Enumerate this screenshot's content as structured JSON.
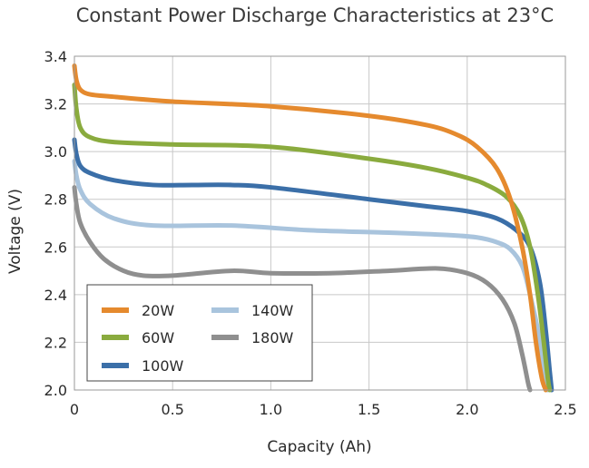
{
  "chart_data": {
    "type": "line",
    "title": "Constant Power Discharge Characteristics at 23°C",
    "xlabel": "Capacity (Ah)",
    "ylabel": "Voltage (V)",
    "xlim": [
      0,
      2.5
    ],
    "ylim": [
      2.0,
      3.4
    ],
    "xticks": [
      "0",
      "0.5",
      "1.0",
      "1.5",
      "2.0",
      "2.5"
    ],
    "yticks": [
      "2.0",
      "2.2",
      "2.4",
      "2.6",
      "2.8",
      "3.0",
      "3.2",
      "3.4"
    ],
    "grid": true,
    "legend_position": "bottom-left",
    "series": [
      {
        "name": "20W",
        "color": "#e58a2e",
        "x": [
          0.0,
          0.01,
          0.03,
          0.08,
          0.2,
          0.5,
          1.0,
          1.5,
          1.8,
          1.95,
          2.05,
          2.15,
          2.22,
          2.28,
          2.32,
          2.35,
          2.38,
          2.4
        ],
        "y": [
          3.36,
          3.3,
          3.26,
          3.24,
          3.23,
          3.21,
          3.19,
          3.15,
          3.11,
          3.07,
          3.02,
          2.93,
          2.8,
          2.6,
          2.4,
          2.2,
          2.05,
          2.0
        ]
      },
      {
        "name": "60W",
        "color": "#8aab3e",
        "x": [
          0.0,
          0.01,
          0.03,
          0.08,
          0.2,
          0.5,
          1.0,
          1.5,
          1.8,
          2.0,
          2.1,
          2.2,
          2.27,
          2.32,
          2.36,
          2.39,
          2.41,
          2.42
        ],
        "y": [
          3.28,
          3.18,
          3.1,
          3.06,
          3.04,
          3.03,
          3.02,
          2.97,
          2.93,
          2.89,
          2.86,
          2.81,
          2.73,
          2.6,
          2.4,
          2.2,
          2.05,
          2.0
        ]
      },
      {
        "name": "100W",
        "color": "#3b6fa8",
        "x": [
          0.0,
          0.01,
          0.03,
          0.08,
          0.2,
          0.4,
          0.6,
          0.8,
          1.0,
          1.5,
          1.8,
          2.0,
          2.15,
          2.25,
          2.32,
          2.37,
          2.4,
          2.42,
          2.43
        ],
        "y": [
          3.05,
          2.99,
          2.94,
          2.91,
          2.88,
          2.86,
          2.86,
          2.86,
          2.85,
          2.8,
          2.77,
          2.75,
          2.72,
          2.67,
          2.6,
          2.45,
          2.25,
          2.08,
          2.0
        ]
      },
      {
        "name": "140W",
        "color": "#a9c4dd",
        "x": [
          0.0,
          0.01,
          0.03,
          0.08,
          0.2,
          0.4,
          0.8,
          1.2,
          1.6,
          1.9,
          2.05,
          2.15,
          2.22,
          2.28,
          2.32,
          2.36,
          2.39,
          2.41
        ],
        "y": [
          2.96,
          2.9,
          2.84,
          2.78,
          2.72,
          2.69,
          2.69,
          2.67,
          2.66,
          2.65,
          2.64,
          2.62,
          2.59,
          2.52,
          2.4,
          2.25,
          2.08,
          2.0
        ]
      },
      {
        "name": "180W",
        "color": "#8f8f8f",
        "x": [
          0.0,
          0.01,
          0.03,
          0.08,
          0.15,
          0.25,
          0.35,
          0.5,
          0.8,
          1.0,
          1.3,
          1.6,
          1.85,
          2.0,
          2.1,
          2.18,
          2.24,
          2.28,
          2.31,
          2.32
        ],
        "y": [
          2.85,
          2.78,
          2.7,
          2.62,
          2.55,
          2.5,
          2.48,
          2.48,
          2.5,
          2.49,
          2.49,
          2.5,
          2.51,
          2.49,
          2.45,
          2.38,
          2.28,
          2.15,
          2.03,
          2.0
        ]
      }
    ]
  }
}
